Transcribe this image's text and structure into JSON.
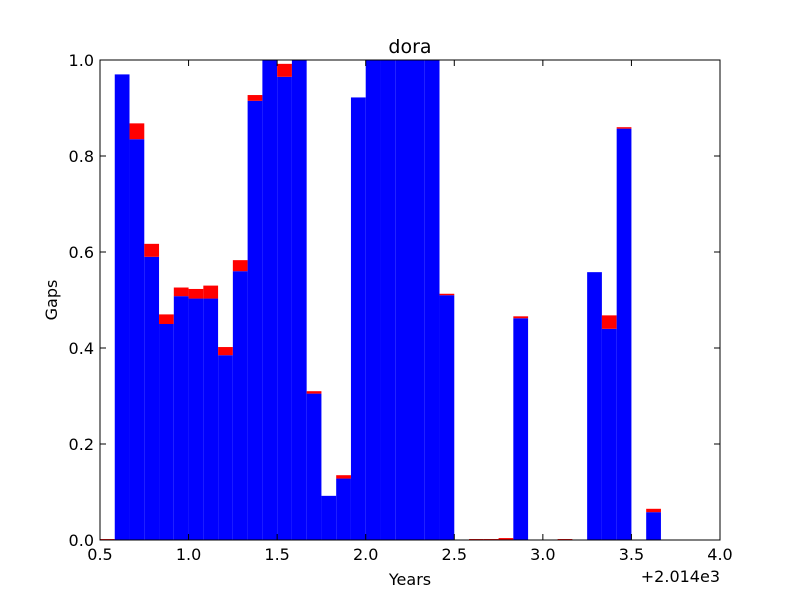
{
  "chart_data": {
    "type": "bar",
    "title": "dora",
    "xlabel": "Years",
    "ylabel": "Gaps",
    "offset_label": "+2.014e3",
    "xlim": [
      0.5,
      4.0
    ],
    "ylim": [
      0.0,
      1.0
    ],
    "x_ticks": [
      "0.5",
      "1.0",
      "1.5",
      "2.0",
      "2.5",
      "3.0",
      "3.5",
      "4.0"
    ],
    "y_ticks": [
      "0.0",
      "0.2",
      "0.4",
      "0.6",
      "0.8",
      "1.0"
    ],
    "x_tick_values": [
      0.5,
      1.0,
      1.5,
      2.0,
      2.5,
      3.0,
      3.5,
      4.0
    ],
    "y_tick_values": [
      0.0,
      0.2,
      0.4,
      0.6,
      0.8,
      1.0
    ],
    "grid": false,
    "legend": "none",
    "bin_width": 0.0833,
    "bin_starts": [
      0.5,
      0.5833,
      0.6667,
      0.75,
      0.8333,
      0.9167,
      1.0,
      1.0833,
      1.1667,
      1.25,
      1.3333,
      1.4167,
      1.5,
      1.5833,
      1.6667,
      1.75,
      1.8333,
      1.9167,
      2.0,
      2.0833,
      2.1667,
      2.25,
      2.3333,
      2.4167,
      2.5,
      2.5833,
      2.6667,
      2.75,
      2.8333,
      2.9167,
      3.0,
      3.0833,
      3.1667,
      3.25,
      3.3333,
      3.4167,
      3.5,
      3.5833,
      3.6667,
      3.75,
      3.8333,
      3.9167
    ],
    "series": [
      {
        "color": "#0000ff",
        "values": [
          0.0,
          0.97,
          0.835,
          0.59,
          0.45,
          0.508,
          0.503,
          0.503,
          0.385,
          0.56,
          0.915,
          1.0,
          0.965,
          1.0,
          0.305,
          0.092,
          0.128,
          0.922,
          1.0,
          1.0,
          1.0,
          1.0,
          1.0,
          0.51,
          0.0,
          0.0,
          0.0,
          0.0,
          0.462,
          0.0,
          0.0,
          0.0,
          0.0,
          0.558,
          0.44,
          0.857,
          0.0,
          0.058,
          0.0,
          0.0,
          0.0,
          0.0
        ]
      },
      {
        "color": "#ff0000",
        "values": [
          0.002,
          0.0,
          0.033,
          0.027,
          0.02,
          0.018,
          0.02,
          0.027,
          0.017,
          0.023,
          0.012,
          0.0,
          0.027,
          0.0,
          0.005,
          0.0,
          0.007,
          0.0,
          0.0,
          0.0,
          0.0,
          0.0,
          0.0,
          0.003,
          0.0,
          0.002,
          0.002,
          0.004,
          0.004,
          0.0,
          0.0,
          0.002,
          0.0,
          0.0,
          0.028,
          0.003,
          0.0,
          0.007,
          0.0,
          0.0,
          0.0,
          0.0
        ]
      }
    ]
  }
}
